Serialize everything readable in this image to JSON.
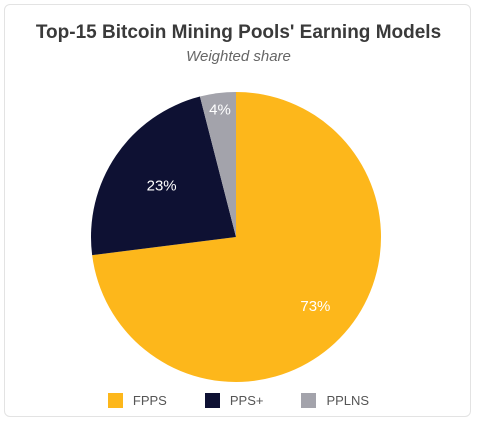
{
  "chart_data": {
    "type": "pie",
    "title": "Top-15 Bitcoin Mining Pools' Earning Models",
    "subtitle": "Weighted share",
    "slices": [
      {
        "name": "FPPS",
        "value": 73,
        "label": "73%",
        "color": "#fdb71b"
      },
      {
        "name": "PPS+",
        "value": 23,
        "label": "23%",
        "color": "#0e1133"
      },
      {
        "name": "PPLNS",
        "value": 4,
        "label": "4%",
        "color": "#a3a3ab"
      }
    ],
    "legend_position": "bottom"
  }
}
